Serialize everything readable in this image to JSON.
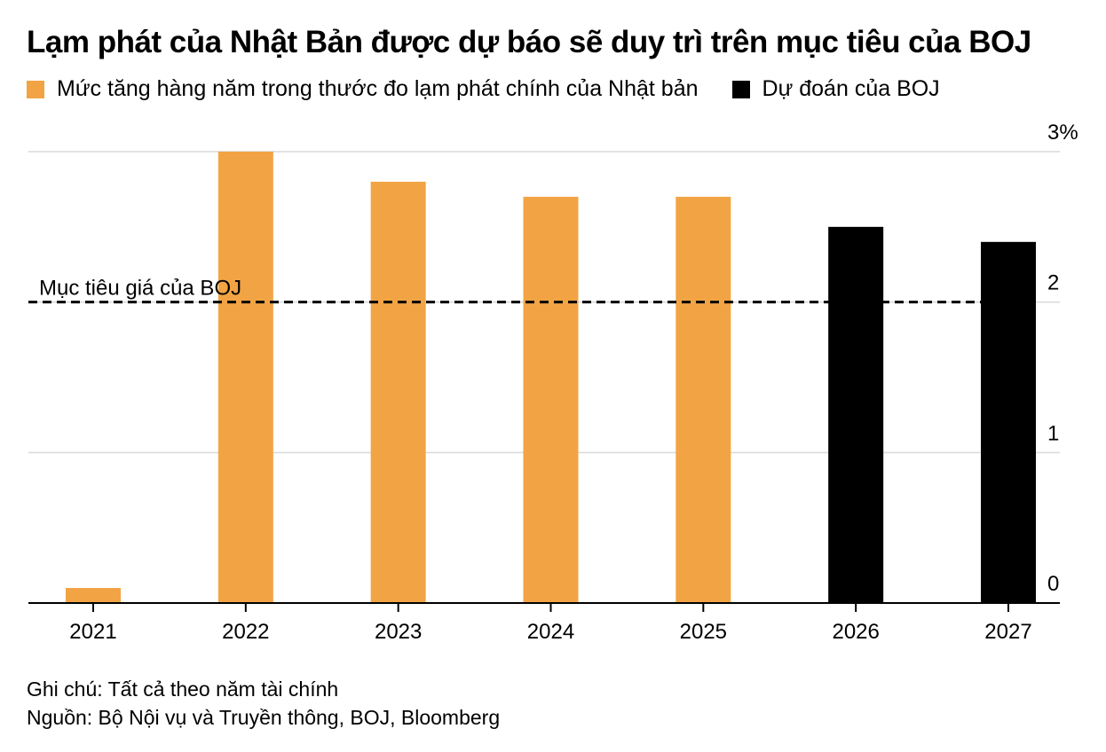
{
  "chart_data": {
    "type": "bar",
    "title": "Lạm phát của Nhật Bản được dự báo sẽ duy trì trên mục tiêu của BOJ",
    "categories": [
      "2021",
      "2022",
      "2023",
      "2024",
      "2025",
      "2026",
      "2027"
    ],
    "series": [
      {
        "name": "Mức tăng hàng năm trong thước đo lạm phát chính của Nhật bản",
        "color": "#F2A444",
        "values": [
          0.1,
          3.0,
          2.8,
          2.7,
          2.7,
          null,
          null
        ]
      },
      {
        "name": "Dự đoán của BOJ",
        "color": "#000000",
        "values": [
          null,
          null,
          null,
          null,
          null,
          2.5,
          2.4
        ]
      }
    ],
    "yticks": [
      {
        "value": 0,
        "label": "0"
      },
      {
        "value": 1,
        "label": "1"
      },
      {
        "value": 2,
        "label": "2"
      },
      {
        "value": 3,
        "label": "3%"
      }
    ],
    "ylim": [
      0,
      3
    ],
    "y_axis_position": "right",
    "grid": true,
    "reference_line": {
      "value": 2,
      "label": "Mục tiêu giá của BOJ",
      "style": "dashed"
    },
    "legend_position": "top-left"
  },
  "notes": {
    "note": "Ghi chú: Tất cả theo năm tài chính",
    "source": "Nguồn: Bộ Nội vụ và Truyền thông, BOJ, Bloomberg"
  }
}
